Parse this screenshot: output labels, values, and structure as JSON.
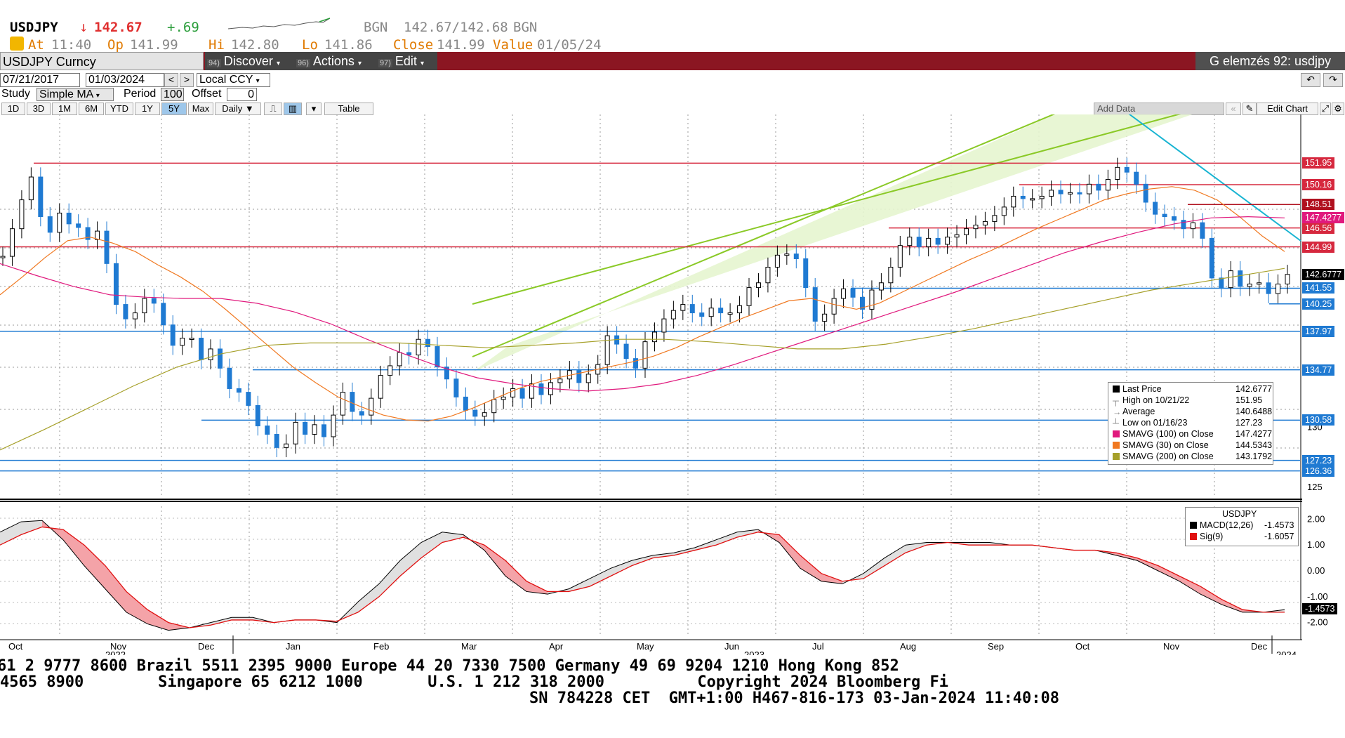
{
  "header": {
    "symbol": "USDJPY",
    "arrow": "↓",
    "last": "142.67",
    "change": "+.69",
    "src1": "BGN",
    "bid_ask": "142.67/142.68",
    "src2": "BGN",
    "at_label": "At",
    "at_value": "11:40",
    "op_label": "Op",
    "op_value": "141.99",
    "hi_label": "Hi",
    "hi_value": "142.80",
    "lo_label": "Lo",
    "lo_value": "141.86",
    "close_label": "Close",
    "close_value": "141.99",
    "value_label": "Value",
    "value_value": "01/05/24"
  },
  "toolbar": {
    "security": "USDJPY Curncy",
    "discover_num": "94)",
    "discover": "Discover",
    "actions_num": "96)",
    "actions": "Actions",
    "edit_num": "97)",
    "edit": "Edit",
    "title": "G elemzés 92: usdjpy"
  },
  "controls": {
    "date_from": "07/21/2017",
    "date_to": "01/03/2024",
    "ccy": "Local CCY",
    "study_label": "Study",
    "study_value": "Simple MA",
    "period_label": "Period",
    "period_value": "100",
    "offset_label": "Offset",
    "offset_value": "0",
    "ranges": [
      "1D",
      "3D",
      "1M",
      "6M",
      "YTD",
      "1Y",
      "5Y",
      "Max"
    ],
    "selected_range": "5Y",
    "frequency": "Daily",
    "table": "Table",
    "add_data": "Add Data",
    "edit_chart": "Edit Chart"
  },
  "chart_data": {
    "type": "line",
    "title": "USDJPY",
    "x_labels": [
      "Oct",
      "Nov",
      "Dec",
      "Jan",
      "Feb",
      "Mar",
      "Apr",
      "May",
      "Jun",
      "Jul",
      "Aug",
      "Sep",
      "Oct",
      "Nov",
      "Dec"
    ],
    "year_labels": [
      "2022",
      "2023",
      "2024"
    ],
    "y_ticks": [
      "125",
      "130"
    ],
    "ylim": [
      124,
      156
    ],
    "levels": [
      {
        "value": 151.95,
        "label": "151.95",
        "color": "#d6283e"
      },
      {
        "value": 150.16,
        "label": "150.16",
        "color": "#d6283e"
      },
      {
        "value": 148.51,
        "label": "148.51",
        "color": "#b0101e"
      },
      {
        "value": 146.56,
        "label": "146.56",
        "color": "#d6283e"
      },
      {
        "value": 144.99,
        "label": "144.99",
        "color": "#d6283e"
      },
      {
        "value": 141.55,
        "label": "141.55",
        "color": "#1f7ad2"
      },
      {
        "value": 140.25,
        "label": "140.25",
        "color": "#1f7ad2"
      },
      {
        "value": 137.97,
        "label": "137.97",
        "color": "#1f7ad2"
      },
      {
        "value": 134.77,
        "label": "134.77",
        "color": "#1f7ad2"
      },
      {
        "value": 130.58,
        "label": "130.58",
        "color": "#1f7ad2"
      },
      {
        "value": 127.23,
        "label": "127.23",
        "color": "#1f7ad2"
      },
      {
        "value": 126.36,
        "label": "126.36",
        "color": "#1f7ad2"
      }
    ],
    "ma_tags": [
      {
        "label": "147.4277",
        "color": "#e0197d",
        "value": 147.4277
      },
      {
        "label": "142.6777",
        "color": "#000000",
        "value": 142.6777
      }
    ],
    "price": [
      144.2,
      146.5,
      148.9,
      150.8,
      147.5,
      146.2,
      147.8,
      146.9,
      146.6,
      145.6,
      146.3,
      143.6,
      140.2,
      139.0,
      139.5,
      140.7,
      140.3,
      138.5,
      136.8,
      137.4,
      137.4,
      135.6,
      136.5,
      134.9,
      133.2,
      132.9,
      131.8,
      130.1,
      129.4,
      128.3,
      128.6,
      130.4,
      129.4,
      130.2,
      129.2,
      131.0,
      132.9,
      131.3,
      131.0,
      132.4,
      134.3,
      135.1,
      136.2,
      136.0,
      137.3,
      136.7,
      135.0,
      134.0,
      132.5,
      131.4,
      130.9,
      131.2,
      132.3,
      132.5,
      133.2,
      132.4,
      133.6,
      132.7,
      133.7,
      134.0,
      134.7,
      133.7,
      134.4,
      135.2,
      137.6,
      136.9,
      135.7,
      134.9,
      137.1,
      137.9,
      139.0,
      139.7,
      140.2,
      139.5,
      139.2,
      139.9,
      139.5,
      139.5,
      140.1,
      141.6,
      142.0,
      143.3,
      144.3,
      144.4,
      144.0,
      141.6,
      138.8,
      139.4,
      140.7,
      141.5,
      140.8,
      139.8,
      141.4,
      142.0,
      143.3,
      145.1,
      145.8,
      145.0,
      145.7,
      145.2,
      145.8,
      146.0,
      146.5,
      146.8,
      147.1,
      147.6,
      148.3,
      149.2,
      149.0,
      149.0,
      149.2,
      149.7,
      149.4,
      149.5,
      149.4,
      150.2,
      149.7,
      150.6,
      151.6,
      151.2,
      150.2,
      148.7,
      147.7,
      147.5,
      147.2,
      146.5,
      147.0,
      145.7,
      142.4,
      141.6,
      143.0,
      141.7,
      141.9,
      142.0,
      141.1,
      141.9,
      142.7
    ],
    "ma30": [
      141.0,
      142.5,
      144.1,
      145.5,
      145.8,
      145.3,
      144.6,
      143.5,
      142.5,
      141.3,
      139.8,
      138.2,
      136.6,
      135.0,
      133.7,
      132.5,
      131.7,
      131.0,
      130.6,
      130.5,
      130.9,
      131.6,
      132.4,
      133.2,
      133.8,
      134.2,
      134.6,
      135.0,
      135.4,
      135.9,
      136.6,
      137.5,
      138.3,
      139.1,
      139.8,
      140.5,
      140.7,
      140.2,
      139.8,
      140.3,
      141.2,
      142.1,
      143.0,
      143.9,
      144.7,
      145.6,
      146.5,
      147.3,
      148.1,
      148.9,
      149.4,
      149.8,
      150.0,
      149.7,
      148.9,
      147.5,
      145.9,
      144.6
    ],
    "ma100": [
      143.6,
      142.6,
      141.7,
      141.0,
      140.8,
      140.7,
      140.7,
      140.3,
      139.6,
      138.6,
      137.3,
      136.1,
      135.0,
      134.1,
      133.6,
      133.2,
      133.0,
      133.2,
      133.6,
      134.3,
      135.2,
      136.2,
      137.2,
      138.2,
      139.2,
      140.2,
      141.2,
      142.3,
      143.4,
      144.5,
      145.4,
      146.2,
      146.9,
      147.4,
      147.5,
      147.4
    ],
    "ma200": [
      128.1,
      129.8,
      131.6,
      133.4,
      135.0,
      136.1,
      136.8,
      137.0,
      137.0,
      137.0,
      136.8,
      136.6,
      136.8,
      137.0,
      137.3,
      137.3,
      137.1,
      136.8,
      136.5,
      136.5,
      136.9,
      137.5,
      138.2,
      139.0,
      139.8,
      140.6,
      141.4,
      142.0,
      142.6,
      143.2
    ]
  },
  "macd_data": {
    "type": "line",
    "title": "USDJPY",
    "macd_label": "MACD(12,26)",
    "macd_value": "-1.4573",
    "sig_label": "Sig(9)",
    "sig_value": "-1.6057",
    "y_ticks": [
      "2.00",
      "1.00",
      "0.00",
      "-1.00",
      "-2.00"
    ],
    "ylim": [
      -2.5,
      2.5
    ],
    "macd": [
      1.5,
      1.9,
      1.95,
      1.2,
      0.2,
      -0.7,
      -1.6,
      -2.05,
      -2.3,
      -2.2,
      -2.0,
      -1.8,
      -1.8,
      -2.0,
      -1.9,
      -1.9,
      -2.0,
      -1.2,
      -0.5,
      0.4,
      1.1,
      1.5,
      1.4,
      0.8,
      -0.2,
      -0.8,
      -0.9,
      -0.7,
      -0.3,
      0.1,
      0.4,
      0.6,
      0.7,
      0.9,
      1.2,
      1.5,
      1.6,
      1.1,
      0.1,
      -0.4,
      -0.5,
      -0.1,
      0.5,
      1.0,
      1.1,
      1.1,
      1.1,
      1.1,
      1.0,
      1.0,
      0.9,
      0.8,
      0.8,
      0.6,
      0.4,
      0.0,
      -0.4,
      -0.9,
      -1.3,
      -1.6,
      -1.6,
      -1.5
    ],
    "signal": [
      1.0,
      1.4,
      1.7,
      1.6,
      1.0,
      0.2,
      -0.8,
      -1.5,
      -2.0,
      -2.2,
      -2.1,
      -1.9,
      -1.9,
      -2.0,
      -1.9,
      -1.9,
      -1.95,
      -1.6,
      -1.0,
      -0.2,
      0.5,
      1.1,
      1.3,
      1.0,
      0.4,
      -0.4,
      -0.8,
      -0.8,
      -0.6,
      -0.2,
      0.2,
      0.5,
      0.6,
      0.8,
      1.0,
      1.3,
      1.5,
      1.4,
      0.6,
      -0.1,
      -0.4,
      -0.3,
      0.2,
      0.7,
      1.0,
      1.1,
      1.0,
      1.0,
      1.0,
      1.0,
      0.9,
      0.8,
      0.8,
      0.7,
      0.5,
      0.2,
      -0.2,
      -0.6,
      -1.1,
      -1.5,
      -1.6,
      -1.6
    ]
  },
  "legend": {
    "rows": [
      {
        "name": "Last Price",
        "value": "142.6777",
        "color": "#000000"
      },
      {
        "name": "High on 10/21/22",
        "value": "151.95",
        "color": ""
      },
      {
        "name": "Average",
        "value": "140.6488",
        "color": ""
      },
      {
        "name": "Low on 01/16/23",
        "value": "127.23",
        "color": ""
      },
      {
        "name": "SMAVG (100)  on Close",
        "value": "147.4277",
        "color": "#e0197d"
      },
      {
        "name": "SMAVG (30)  on Close",
        "value": "144.5343",
        "color": "#f07820"
      },
      {
        "name": "SMAVG (200)  on Close",
        "value": "143.1792",
        "color": "#a6a02a"
      }
    ]
  },
  "ticker": {
    "line1": "61 2 9777 8600 Brazil 5511 2395 9000 Europe 44 20 7330 7500 Germany 49 69 9204 1210 Hong Kong 852",
    "line2": "4565 8900        Singapore 65 6212 1000       U.S. 1 212 318 2000          Copyright 2024 Bloomberg Fi",
    "line3": "SN 784228 CET  GMT+1:00 H467-816-173 03-Jan-2024 11:40:08"
  },
  "colors": {
    "accent_bar": "#8b1622",
    "up": "#1f7ad2",
    "channel": "#8ac926",
    "trend": "#18b4d2"
  }
}
